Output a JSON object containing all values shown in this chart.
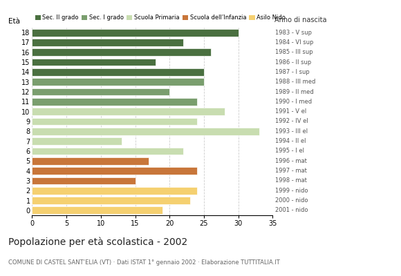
{
  "ages": [
    18,
    17,
    16,
    15,
    14,
    13,
    12,
    11,
    10,
    9,
    8,
    7,
    6,
    5,
    4,
    3,
    2,
    1,
    0
  ],
  "values": [
    30,
    22,
    26,
    18,
    25,
    25,
    20,
    24,
    28,
    24,
    33,
    13,
    22,
    17,
    24,
    15,
    24,
    23,
    19
  ],
  "categories": [
    "Sec. II grado",
    "Sec. I grado",
    "Scuola Primaria",
    "Scuola dell’Infanzia",
    "Asilo Nido"
  ],
  "bar_colors": [
    "#4a7040",
    "#4a7040",
    "#4a7040",
    "#4a7040",
    "#4a7040",
    "#7a9e6e",
    "#7a9e6e",
    "#7a9e6e",
    "#c8ddb0",
    "#c8ddb0",
    "#c8ddb0",
    "#c8ddb0",
    "#c8ddb0",
    "#c8763a",
    "#c8763a",
    "#c8763a",
    "#f5d070",
    "#f5d070",
    "#f5d070"
  ],
  "legend_colors": [
    "#4a7040",
    "#7a9e6e",
    "#c8ddb0",
    "#c8763a",
    "#f5d070"
  ],
  "right_labels": [
    "1983 - V sup",
    "1984 - VI sup",
    "1985 - III sup",
    "1986 - II sup",
    "1987 - I sup",
    "1988 - III med",
    "1989 - II med",
    "1990 - I med",
    "1991 - V el",
    "1992 - IV el",
    "1993 - III el",
    "1994 - II el",
    "1995 - I el",
    "1996 - mat",
    "1997 - mat",
    "1998 - mat",
    "1999 - nido",
    "2000 - nido",
    "2001 - nido"
  ],
  "title": "Popolazione per età scolastica - 2002",
  "subtitle": "COMUNE DI CASTEL SANT’ELIA (VT) · Dati ISTAT 1° gennaio 2002 · Elaborazione TUTTITALIA.IT",
  "ylabel": "Età",
  "anno_label": "Anno di nascita",
  "xlim": [
    0,
    35
  ],
  "xticks": [
    0,
    5,
    10,
    15,
    20,
    25,
    30,
    35
  ],
  "background_color": "#ffffff",
  "grid_color": "#cccccc"
}
